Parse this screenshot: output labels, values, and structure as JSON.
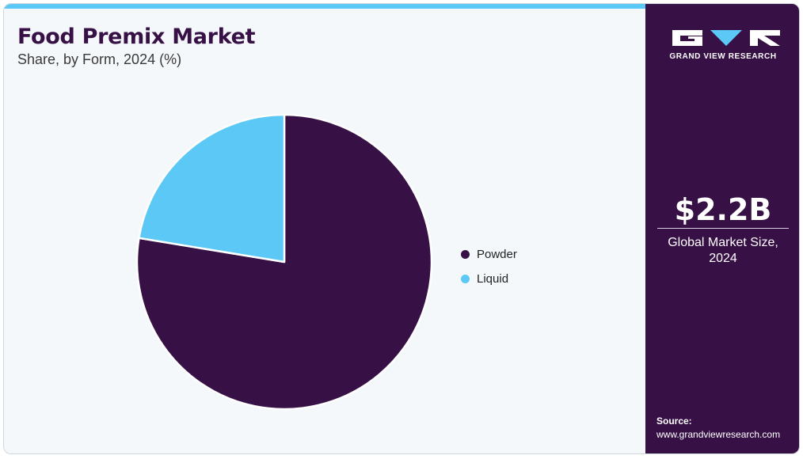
{
  "header": {
    "title": "Food Premix Market",
    "subtitle": "Share, by Form, 2024 (%)"
  },
  "sidebar": {
    "brand": "GRAND VIEW RESEARCH",
    "stat_value": "$2.2B",
    "stat_label_line1": "Global Market Size,",
    "stat_label_line2": "2024",
    "source_label": "Source:",
    "source_url": "www.grandviewresearch.com"
  },
  "colors": {
    "powder": "#371046",
    "liquid": "#5bc8f5",
    "accent": "#5bc8f5",
    "sidebar_bg": "#371046"
  },
  "chart_data": {
    "type": "pie",
    "title": "Food Premix Market",
    "subtitle": "Share, by Form, 2024 (%)",
    "legend_position": "right",
    "slices": [
      {
        "label": "Powder",
        "value": 77.6,
        "color": "#371046"
      },
      {
        "label": "Liquid",
        "value": 22.4,
        "color": "#5bc8f5"
      }
    ]
  }
}
